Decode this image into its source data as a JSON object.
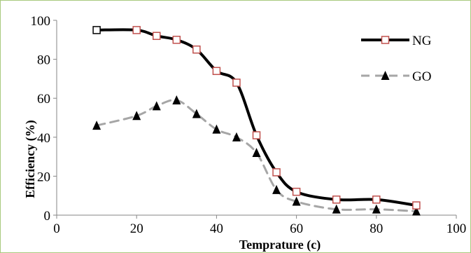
{
  "chart_data": {
    "type": "line",
    "title": "",
    "xlabel": "Temprature (c)",
    "ylabel": "Efficiency (%)",
    "xlim": [
      0,
      100
    ],
    "ylim": [
      0,
      100
    ],
    "x_ticks": [
      0,
      20,
      40,
      60,
      80,
      100
    ],
    "y_ticks": [
      0,
      20,
      40,
      60,
      80,
      100
    ],
    "grid": false,
    "legend_position": "top-right",
    "series": [
      {
        "name": "NG",
        "color": "#000000",
        "marker_color": "#c0504d",
        "marker": "square",
        "line_style": "solid",
        "x": [
          10,
          20,
          25,
          30,
          35,
          40,
          45,
          50,
          55,
          60,
          70,
          80,
          90
        ],
        "y": [
          95,
          95,
          92,
          90,
          85,
          74,
          68,
          41,
          22,
          12,
          8,
          8,
          5
        ]
      },
      {
        "name": "GO",
        "color": "#a6a6a6",
        "marker_color": "#000000",
        "marker": "triangle",
        "line_style": "dashed",
        "x": [
          10,
          20,
          25,
          30,
          35,
          40,
          45,
          50,
          55,
          60,
          70,
          80,
          90
        ],
        "y": [
          46,
          51,
          56,
          59,
          52,
          44,
          40,
          32,
          13,
          7,
          3,
          3,
          2
        ]
      }
    ]
  }
}
